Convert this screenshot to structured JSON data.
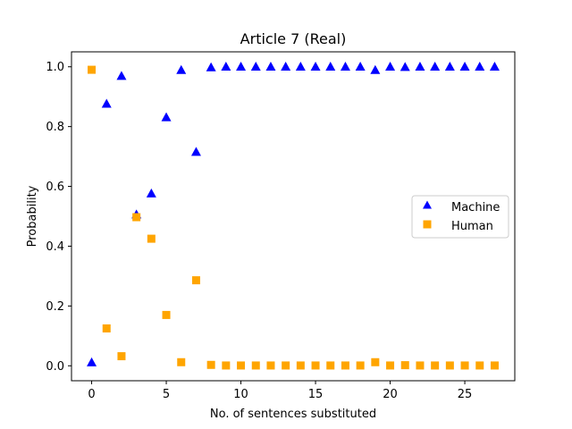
{
  "chart_data": {
    "type": "scatter",
    "title": "Article 7 (Real)",
    "xlabel": "No. of sentences substituted",
    "ylabel": "Probability",
    "xlim": [
      -1.35,
      28.35
    ],
    "ylim": [
      -0.05,
      1.05
    ],
    "x_ticks": [
      0,
      5,
      10,
      15,
      20,
      25
    ],
    "y_ticks": [
      0.0,
      0.2,
      0.4,
      0.6,
      0.8,
      1.0
    ],
    "x_tick_labels": [
      "0",
      "5",
      "10",
      "15",
      "20",
      "25"
    ],
    "y_tick_labels": [
      "0.0",
      "0.2",
      "0.4",
      "0.6",
      "0.8",
      "1.0"
    ],
    "grid": false,
    "legend_position": "center-right",
    "series": [
      {
        "name": "Machine",
        "marker": "triangle",
        "color": "#0000ff",
        "x": [
          0,
          1,
          2,
          3,
          4,
          5,
          6,
          7,
          8,
          9,
          10,
          11,
          12,
          13,
          14,
          15,
          16,
          17,
          18,
          19,
          20,
          21,
          22,
          23,
          24,
          25,
          26,
          27
        ],
        "y": [
          0.01,
          0.875,
          0.968,
          0.505,
          0.575,
          0.83,
          0.988,
          0.714,
          0.997,
          0.999,
          0.999,
          0.999,
          0.999,
          0.999,
          0.999,
          0.999,
          0.999,
          0.999,
          0.999,
          0.988,
          0.999,
          0.998,
          0.999,
          0.999,
          0.999,
          0.999,
          0.999,
          0.999
        ]
      },
      {
        "name": "Human",
        "marker": "square",
        "color": "#ffa500",
        "x": [
          0,
          1,
          2,
          3,
          4,
          5,
          6,
          7,
          8,
          9,
          10,
          11,
          12,
          13,
          14,
          15,
          16,
          17,
          18,
          19,
          20,
          21,
          22,
          23,
          24,
          25,
          26,
          27
        ],
        "y": [
          0.99,
          0.125,
          0.032,
          0.497,
          0.425,
          0.17,
          0.012,
          0.286,
          0.003,
          0.001,
          0.001,
          0.001,
          0.001,
          0.001,
          0.001,
          0.001,
          0.001,
          0.001,
          0.001,
          0.012,
          0.001,
          0.002,
          0.001,
          0.001,
          0.001,
          0.001,
          0.001,
          0.001
        ]
      }
    ]
  }
}
